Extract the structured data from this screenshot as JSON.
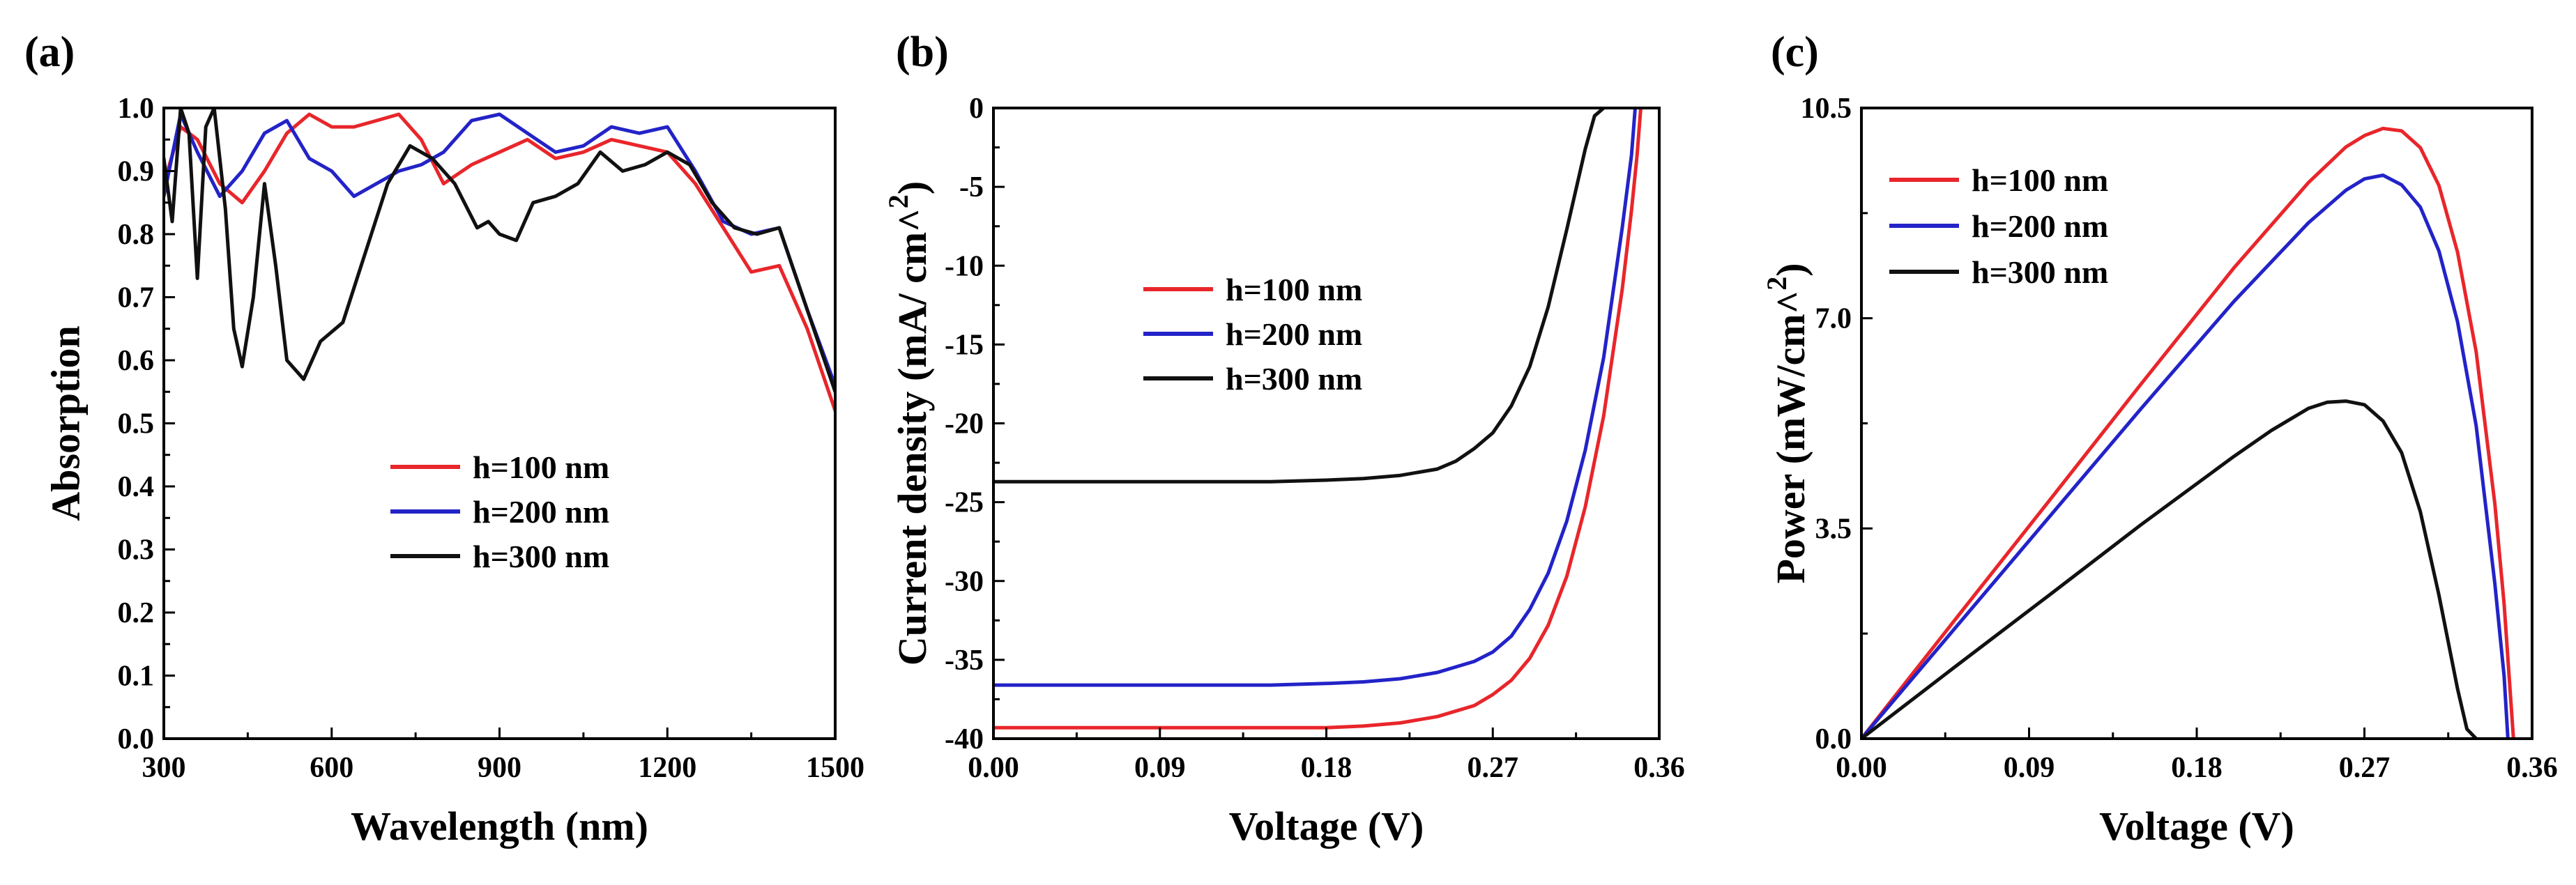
{
  "colors": {
    "h100": "#e8262b",
    "h200": "#2323c8",
    "h300": "#111111"
  },
  "chart_data": [
    {
      "panel": "(a)",
      "type": "line",
      "xlabel": "Wavelength (nm)",
      "ylabel": "Absorption",
      "xlim": [
        300,
        1500
      ],
      "ylim": [
        0.0,
        1.0
      ],
      "xticks": [
        "300",
        "600",
        "900",
        "1200",
        "1500"
      ],
      "yticks": [
        "0.0",
        "0.1",
        "0.2",
        "0.3",
        "0.4",
        "0.5",
        "0.6",
        "0.7",
        "0.8",
        "0.9",
        "1.0"
      ],
      "legend_position": "center",
      "series": [
        {
          "name": "h=100 nm",
          "color": "#e8262b",
          "x": [
            300,
            330,
            360,
            400,
            440,
            480,
            520,
            560,
            600,
            640,
            680,
            720,
            760,
            800,
            850,
            900,
            950,
            1000,
            1050,
            1100,
            1150,
            1200,
            1250,
            1300,
            1350,
            1400,
            1450,
            1500
          ],
          "y": [
            0.88,
            0.97,
            0.95,
            0.88,
            0.85,
            0.9,
            0.96,
            0.99,
            0.97,
            0.97,
            0.98,
            0.99,
            0.95,
            0.88,
            0.91,
            0.93,
            0.95,
            0.92,
            0.93,
            0.95,
            0.94,
            0.93,
            0.88,
            0.81,
            0.74,
            0.75,
            0.65,
            0.52
          ]
        },
        {
          "name": "h=200 nm",
          "color": "#2323c8",
          "x": [
            300,
            330,
            360,
            400,
            440,
            480,
            520,
            560,
            600,
            640,
            680,
            720,
            760,
            800,
            850,
            900,
            950,
            1000,
            1050,
            1100,
            1150,
            1200,
            1250,
            1300,
            1350,
            1400,
            1450,
            1500
          ],
          "y": [
            0.86,
            0.99,
            0.93,
            0.86,
            0.9,
            0.96,
            0.98,
            0.92,
            0.9,
            0.86,
            0.88,
            0.9,
            0.91,
            0.93,
            0.98,
            0.99,
            0.96,
            0.93,
            0.94,
            0.97,
            0.96,
            0.97,
            0.9,
            0.82,
            0.8,
            0.81,
            0.68,
            0.56
          ]
        },
        {
          "name": "h=300 nm",
          "color": "#111111",
          "x": [
            300,
            315,
            330,
            345,
            360,
            375,
            390,
            410,
            425,
            440,
            460,
            480,
            500,
            520,
            550,
            580,
            620,
            660,
            700,
            740,
            780,
            820,
            860,
            880,
            900,
            930,
            960,
            1000,
            1040,
            1080,
            1120,
            1160,
            1200,
            1240,
            1280,
            1320,
            1360,
            1400,
            1450,
            1500
          ],
          "y": [
            0.92,
            0.82,
            1.0,
            0.96,
            0.73,
            0.97,
            1.0,
            0.84,
            0.65,
            0.59,
            0.7,
            0.88,
            0.75,
            0.6,
            0.57,
            0.63,
            0.66,
            0.77,
            0.88,
            0.94,
            0.92,
            0.88,
            0.81,
            0.82,
            0.8,
            0.79,
            0.85,
            0.86,
            0.88,
            0.93,
            0.9,
            0.91,
            0.93,
            0.91,
            0.85,
            0.81,
            0.8,
            0.81,
            0.68,
            0.55
          ]
        }
      ]
    },
    {
      "panel": "(b)",
      "type": "line",
      "xlabel": "Voltage (V)",
      "ylabel": "Current density (mA/ cm^2)",
      "xlim": [
        0.0,
        0.36
      ],
      "ylim": [
        -40,
        0
      ],
      "xticks": [
        "0.00",
        "0.09",
        "0.18",
        "0.27",
        "0.36"
      ],
      "yticks": [
        "-40",
        "-35",
        "-30",
        "-25",
        "-20",
        "-15",
        "-10",
        "-5",
        "0"
      ],
      "legend_position": "upper-left",
      "series": [
        {
          "name": "h=100 nm",
          "color": "#e8262b",
          "x": [
            0.0,
            0.05,
            0.1,
            0.15,
            0.18,
            0.2,
            0.22,
            0.24,
            0.26,
            0.27,
            0.28,
            0.29,
            0.3,
            0.31,
            0.32,
            0.33,
            0.34,
            0.345,
            0.348,
            0.35
          ],
          "y": [
            -39.3,
            -39.3,
            -39.3,
            -39.3,
            -39.3,
            -39.2,
            -39.0,
            -38.6,
            -37.9,
            -37.2,
            -36.3,
            -34.9,
            -32.8,
            -29.7,
            -25.3,
            -19.5,
            -11.5,
            -6.5,
            -3.0,
            0.0
          ]
        },
        {
          "name": "h=200 nm",
          "color": "#2323c8",
          "x": [
            0.0,
            0.05,
            0.1,
            0.15,
            0.18,
            0.2,
            0.22,
            0.24,
            0.26,
            0.27,
            0.28,
            0.29,
            0.3,
            0.31,
            0.32,
            0.33,
            0.34,
            0.345,
            0.347
          ],
          "y": [
            -36.6,
            -36.6,
            -36.6,
            -36.6,
            -36.5,
            -36.4,
            -36.2,
            -35.8,
            -35.1,
            -34.5,
            -33.5,
            -31.8,
            -29.5,
            -26.2,
            -21.7,
            -15.8,
            -7.6,
            -3.0,
            0.0
          ]
        },
        {
          "name": "h=300 nm",
          "color": "#111111",
          "x": [
            0.0,
            0.05,
            0.1,
            0.15,
            0.18,
            0.2,
            0.22,
            0.24,
            0.25,
            0.26,
            0.27,
            0.28,
            0.29,
            0.3,
            0.31,
            0.32,
            0.325,
            0.33
          ],
          "y": [
            -23.7,
            -23.7,
            -23.7,
            -23.7,
            -23.6,
            -23.5,
            -23.3,
            -22.9,
            -22.4,
            -21.6,
            -20.6,
            -18.9,
            -16.4,
            -12.6,
            -7.7,
            -2.6,
            -0.5,
            0.0
          ]
        }
      ]
    },
    {
      "panel": "(c)",
      "type": "line",
      "xlabel": "Voltage (V)",
      "ylabel": "Power (mW/cm^2)",
      "xlim": [
        0.0,
        0.36
      ],
      "ylim": [
        0.0,
        10.5
      ],
      "xticks": [
        "0.00",
        "0.09",
        "0.18",
        "0.27",
        "0.36"
      ],
      "yticks": [
        "0.0",
        "3.5",
        "7.0",
        "10.5"
      ],
      "legend_position": "upper-left",
      "series": [
        {
          "name": "h=100 nm",
          "color": "#e8262b",
          "x": [
            0.0,
            0.05,
            0.1,
            0.15,
            0.2,
            0.24,
            0.26,
            0.27,
            0.28,
            0.29,
            0.3,
            0.31,
            0.32,
            0.33,
            0.34,
            0.345,
            0.35
          ],
          "y": [
            0.0,
            1.97,
            3.93,
            5.9,
            7.84,
            9.26,
            9.85,
            10.04,
            10.16,
            10.12,
            9.84,
            9.21,
            8.1,
            6.44,
            3.91,
            2.24,
            0.0
          ]
        },
        {
          "name": "h=200 nm",
          "color": "#2323c8",
          "x": [
            0.0,
            0.05,
            0.1,
            0.15,
            0.2,
            0.24,
            0.26,
            0.27,
            0.28,
            0.29,
            0.3,
            0.31,
            0.32,
            0.33,
            0.34,
            0.345,
            0.347
          ],
          "y": [
            0.0,
            1.83,
            3.66,
            5.49,
            7.28,
            8.59,
            9.13,
            9.32,
            9.38,
            9.22,
            8.85,
            8.12,
            6.94,
            5.21,
            2.58,
            1.04,
            0.0
          ]
        },
        {
          "name": "h=300 nm",
          "color": "#111111",
          "x": [
            0.0,
            0.05,
            0.1,
            0.15,
            0.2,
            0.22,
            0.24,
            0.25,
            0.26,
            0.27,
            0.28,
            0.29,
            0.3,
            0.31,
            0.32,
            0.325,
            0.33
          ],
          "y": [
            0.0,
            1.19,
            2.37,
            3.56,
            4.7,
            5.13,
            5.5,
            5.6,
            5.62,
            5.56,
            5.29,
            4.76,
            3.78,
            2.39,
            0.83,
            0.16,
            0.0
          ]
        }
      ]
    }
  ]
}
